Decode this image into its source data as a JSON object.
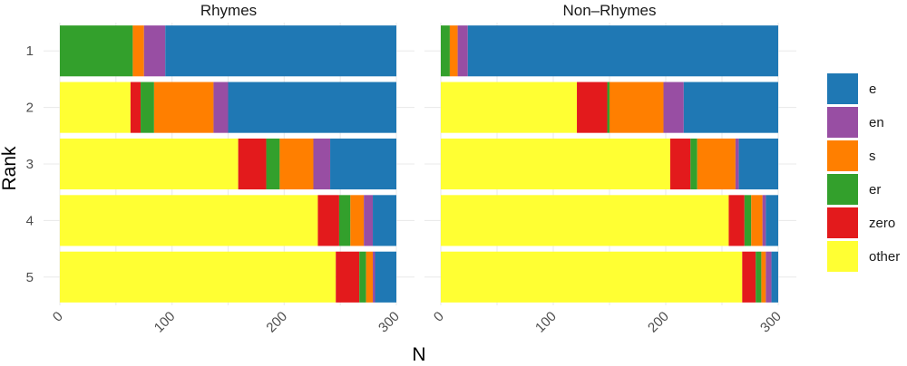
{
  "chart_data": {
    "type": "bar",
    "orientation": "horizontal",
    "stacked": true,
    "xlabel": "N",
    "ylabel": "Rank",
    "xlim": [
      0,
      300
    ],
    "x_ticks": [
      0,
      100,
      200,
      300
    ],
    "x_tick_labels": [
      "0",
      "100",
      "200",
      "300"
    ],
    "categories": [
      "1",
      "2",
      "3",
      "4",
      "5"
    ],
    "legend_title": "",
    "legend_position": "right",
    "legend": [
      "e",
      "en",
      "s",
      "er",
      "zero",
      "other"
    ],
    "colors": {
      "e": "#1f78b4",
      "en": "#984ea3",
      "s": "#ff7f00",
      "er": "#33a02c",
      "zero": "#e31a1c",
      "other": "#ffff33"
    },
    "stack_order": [
      "other",
      "zero",
      "er",
      "s",
      "en",
      "e"
    ],
    "facets": [
      {
        "title": "Rhymes",
        "series": [
          {
            "name": "other",
            "values": [
              0,
              63,
              159,
              230,
              246
            ]
          },
          {
            "name": "zero",
            "values": [
              0,
              9,
              25,
              19,
              21
            ]
          },
          {
            "name": "er",
            "values": [
              65,
              12,
              12,
              10,
              6
            ]
          },
          {
            "name": "s",
            "values": [
              10,
              53,
              30,
              12,
              6
            ]
          },
          {
            "name": "en",
            "values": [
              19,
              13,
              15,
              8,
              2
            ]
          },
          {
            "name": "e",
            "values": [
              206,
              150,
              59,
              21,
              19
            ]
          }
        ]
      },
      {
        "title": "Non–Rhymes",
        "series": [
          {
            "name": "other",
            "values": [
              0,
              121,
              204,
              256,
              268
            ]
          },
          {
            "name": "zero",
            "values": [
              0,
              27,
              18,
              14,
              12
            ]
          },
          {
            "name": "er",
            "values": [
              8,
              2,
              6,
              6,
              5
            ]
          },
          {
            "name": "s",
            "values": [
              7,
              48,
              34,
              10,
              4
            ]
          },
          {
            "name": "en",
            "values": [
              9,
              18,
              3,
              3,
              5
            ]
          },
          {
            "name": "e",
            "values": [
              276,
              84,
              35,
              11,
              6
            ]
          }
        ]
      }
    ]
  }
}
